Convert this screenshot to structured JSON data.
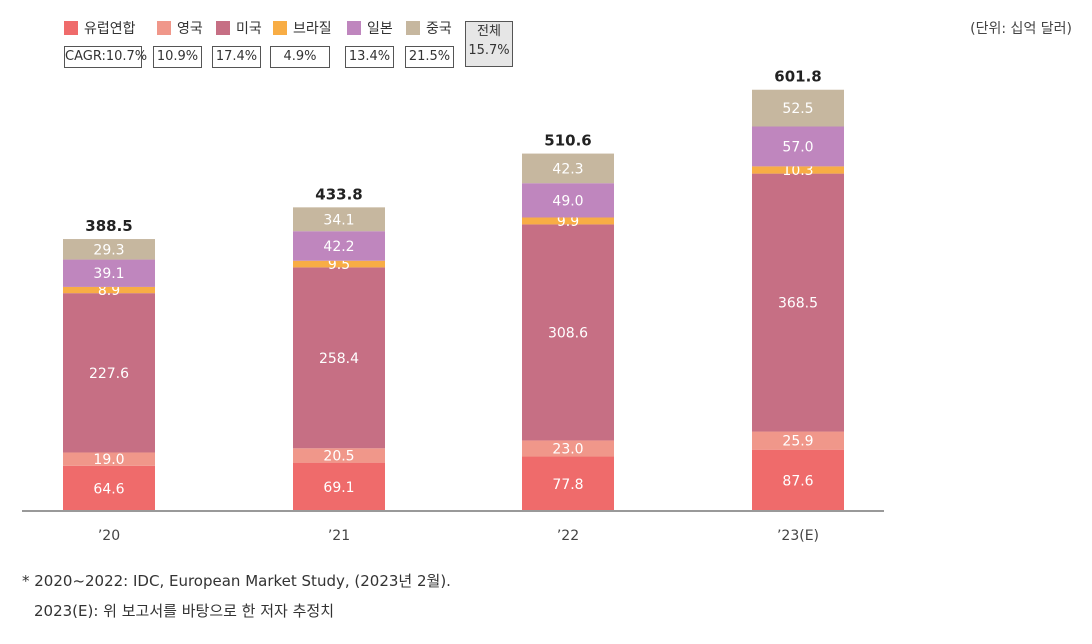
{
  "chart_data": {
    "type": "stacked-bar",
    "unit_label": "(단위: 십억 달러)",
    "categories": [
      "’20",
      "’21",
      "’22",
      "’23(E)"
    ],
    "totals": [
      "388.5",
      "433.8",
      "510.6",
      "601.8"
    ],
    "ylim": [
      0,
      620
    ],
    "series": [
      {
        "name": "유럽연합",
        "color": "#ef6b6b",
        "cagr": "CAGR:10.7%",
        "values": [
          64.6,
          69.1,
          77.8,
          87.6
        ],
        "labels": [
          "64.6",
          "69.1",
          "77.8",
          "87.6"
        ]
      },
      {
        "name": "영국",
        "color": "#f0978a",
        "cagr": "10.9%",
        "values": [
          19.0,
          20.5,
          23.0,
          25.9
        ],
        "labels": [
          "19.0",
          "20.5",
          "23.0",
          "25.9"
        ]
      },
      {
        "name": "미국",
        "color": "#c66f84",
        "cagr": "17.4%",
        "values": [
          227.6,
          258.4,
          308.6,
          368.5
        ],
        "labels": [
          "227.6",
          "258.4",
          "308.6",
          "368.5"
        ]
      },
      {
        "name": "브라질",
        "color": "#f8ad45",
        "cagr": "4.9%",
        "values": [
          8.9,
          9.5,
          9.9,
          10.3
        ],
        "labels": [
          "8.9",
          "9.5",
          "9.9",
          "10.3"
        ]
      },
      {
        "name": "일본",
        "color": "#bf86be",
        "cagr": "13.4%",
        "values": [
          39.1,
          42.2,
          49.0,
          57.0
        ],
        "labels": [
          "39.1",
          "42.2",
          "49.0",
          "57.0"
        ]
      },
      {
        "name": "중국",
        "color": "#c6b79f",
        "cagr": "21.5%",
        "values": [
          29.3,
          34.1,
          42.3,
          52.5
        ],
        "labels": [
          "29.3",
          "34.1",
          "42.3",
          "52.5"
        ]
      }
    ],
    "overall_cagr_label": "전체",
    "overall_cagr": "15.7%"
  },
  "footnotes": {
    "line1": "* 2020~2022: IDC, European Market Study, (2023년 2월).",
    "line2": "2023(E): 위 보고서를 바탕으로 한 저자 추정치"
  }
}
